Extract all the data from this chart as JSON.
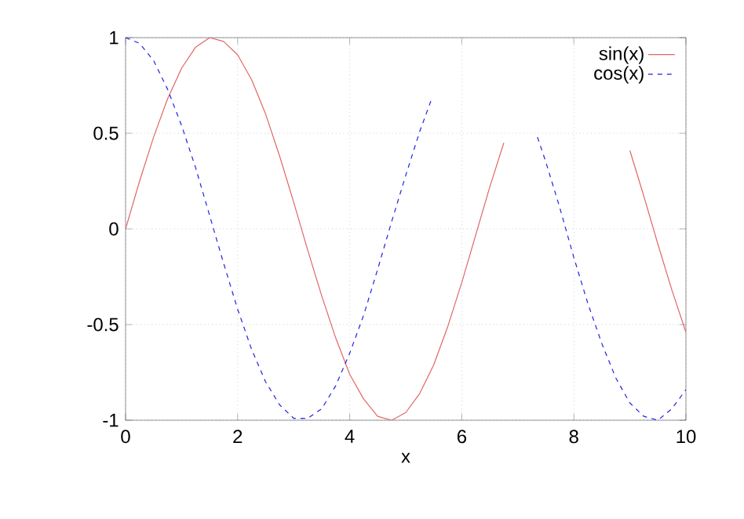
{
  "chart_data": {
    "type": "line",
    "xlabel": "x",
    "xlim": [
      0,
      10
    ],
    "ylim": [
      -1,
      1
    ],
    "xticks": [
      0,
      2,
      4,
      6,
      8,
      10
    ],
    "yticks": [
      -1,
      -0.5,
      0,
      0.5,
      1
    ],
    "grid": true,
    "legend": "top right",
    "marker": "none",
    "series": [
      {
        "name": "sin(x)",
        "color": "#e06666",
        "line_style": "solid",
        "x": [
          0,
          0.25,
          0.5,
          0.75,
          1,
          1.25,
          1.5,
          1.75,
          2,
          2.25,
          2.5,
          2.75,
          3,
          3.25,
          3.5,
          3.75,
          4,
          4.25,
          4.5,
          4.75,
          5,
          5.25,
          5.5,
          5.75,
          6,
          6.25,
          6.5,
          6.75,
          7,
          9,
          9.25,
          9.5,
          9.75,
          10
        ],
        "values": [
          0,
          0.25,
          0.48,
          0.68,
          0.84,
          0.95,
          1.0,
          0.98,
          0.91,
          0.78,
          0.6,
          0.38,
          0.14,
          -0.11,
          -0.35,
          -0.57,
          -0.76,
          -0.89,
          -0.98,
          -1.0,
          -0.96,
          -0.86,
          -0.71,
          -0.51,
          -0.28,
          -0.03,
          0.22,
          0.45,
          null,
          0.41,
          0.17,
          -0.08,
          -0.32,
          -0.54
        ]
      },
      {
        "name": "cos(x)",
        "color": "#2222dd",
        "line_style": "dashed",
        "x": [
          0,
          0.25,
          0.5,
          0.75,
          1,
          1.25,
          1.5,
          1.75,
          2,
          2.25,
          2.5,
          2.75,
          3,
          3.25,
          3.5,
          3.75,
          4,
          4.25,
          4.5,
          4.75,
          5,
          5.25,
          5.45,
          6.4,
          7.35,
          7.5,
          7.75,
          8,
          8.25,
          8.5,
          8.75,
          9,
          9.25,
          9.5,
          9.75,
          10
        ],
        "values": [
          1.0,
          0.97,
          0.88,
          0.73,
          0.54,
          0.32,
          0.07,
          -0.18,
          -0.42,
          -0.63,
          -0.8,
          -0.92,
          -0.99,
          -0.99,
          -0.94,
          -0.82,
          -0.65,
          -0.45,
          -0.21,
          0.04,
          0.28,
          0.51,
          0.67,
          null,
          0.48,
          0.35,
          0.11,
          -0.15,
          -0.39,
          -0.6,
          -0.78,
          -0.91,
          -0.98,
          -1.0,
          -0.94,
          -0.84
        ]
      }
    ]
  }
}
